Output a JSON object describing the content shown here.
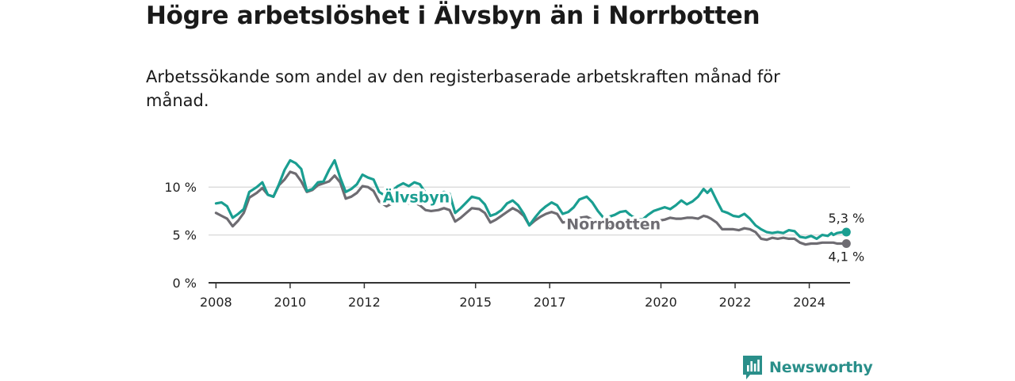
{
  "title": "Högre arbetslöshet i Älvsbyn än i Norrbotten",
  "subtitle": "Arbetssökande som andel av den registerbaserade arbetskraften månad för månad.",
  "brand": {
    "name": "Newsworthy"
  },
  "colors": {
    "alvsbyn": "#1a9e91",
    "norrbotten": "#6e6c72",
    "grid": "#dddddd",
    "axis": "#333333"
  },
  "chart_data": {
    "type": "line",
    "title": "Högre arbetslöshet i Älvsbyn än i Norrbotten",
    "xlabel": "",
    "ylabel": "",
    "xlim": [
      2007.8,
      2025.1
    ],
    "ylim": [
      0,
      13
    ],
    "x_ticks": [
      {
        "value": 2008,
        "label": "2008"
      },
      {
        "value": 2010,
        "label": "2010"
      },
      {
        "value": 2012,
        "label": "2012"
      },
      {
        "value": 2015,
        "label": "2015"
      },
      {
        "value": 2017,
        "label": "2017"
      },
      {
        "value": 2020,
        "label": "2020"
      },
      {
        "value": 2022,
        "label": "2022"
      },
      {
        "value": 2024,
        "label": "2024"
      }
    ],
    "y_ticks": [
      {
        "value": 0,
        "label": "0 %"
      },
      {
        "value": 5,
        "label": "5 %"
      },
      {
        "value": 10,
        "label": "10 %"
      }
    ],
    "grid": true,
    "series": [
      {
        "name": "Älvsbyn",
        "label": "Älvsbyn",
        "color": "#1a9e91",
        "end_label": "5,3 %",
        "points": [
          [
            2008.0,
            8.3
          ],
          [
            2008.15,
            8.4
          ],
          [
            2008.3,
            8.0
          ],
          [
            2008.45,
            6.8
          ],
          [
            2008.6,
            7.2
          ],
          [
            2008.75,
            7.7
          ],
          [
            2008.9,
            9.5
          ],
          [
            2009.1,
            10.0
          ],
          [
            2009.25,
            10.5
          ],
          [
            2009.4,
            9.2
          ],
          [
            2009.55,
            9.0
          ],
          [
            2009.7,
            10.3
          ],
          [
            2009.85,
            11.8
          ],
          [
            2010.0,
            12.8
          ],
          [
            2010.15,
            12.5
          ],
          [
            2010.3,
            11.9
          ],
          [
            2010.45,
            9.6
          ],
          [
            2010.6,
            9.8
          ],
          [
            2010.75,
            10.5
          ],
          [
            2010.9,
            10.6
          ],
          [
            2011.05,
            11.8
          ],
          [
            2011.2,
            12.8
          ],
          [
            2011.35,
            11.0
          ],
          [
            2011.5,
            9.5
          ],
          [
            2011.65,
            9.8
          ],
          [
            2011.8,
            10.3
          ],
          [
            2011.95,
            11.3
          ],
          [
            2012.1,
            11.0
          ],
          [
            2012.25,
            10.8
          ],
          [
            2012.4,
            9.5
          ],
          [
            2012.6,
            9.0
          ],
          [
            2012.75,
            9.6
          ],
          [
            2012.9,
            10.1
          ],
          [
            2013.05,
            10.4
          ],
          [
            2013.2,
            10.1
          ],
          [
            2013.35,
            10.5
          ],
          [
            2013.5,
            10.3
          ],
          [
            2013.65,
            9.4
          ],
          [
            2013.8,
            9.2
          ],
          [
            2014.0,
            9.3
          ],
          [
            2014.15,
            9.5
          ],
          [
            2014.3,
            9.3
          ],
          [
            2014.45,
            7.3
          ],
          [
            2014.6,
            7.8
          ],
          [
            2014.75,
            8.4
          ],
          [
            2014.9,
            9.0
          ],
          [
            2015.1,
            8.8
          ],
          [
            2015.25,
            8.2
          ],
          [
            2015.4,
            7.0
          ],
          [
            2015.55,
            7.2
          ],
          [
            2015.7,
            7.6
          ],
          [
            2015.85,
            8.3
          ],
          [
            2016.0,
            8.6
          ],
          [
            2016.15,
            8.1
          ],
          [
            2016.3,
            7.2
          ],
          [
            2016.45,
            6.0
          ],
          [
            2016.6,
            6.8
          ],
          [
            2016.75,
            7.5
          ],
          [
            2016.9,
            8.0
          ],
          [
            2017.05,
            8.4
          ],
          [
            2017.2,
            8.1
          ],
          [
            2017.35,
            7.2
          ],
          [
            2017.5,
            7.4
          ],
          [
            2017.65,
            7.9
          ],
          [
            2017.8,
            8.7
          ],
          [
            2018.0,
            9.0
          ],
          [
            2018.15,
            8.4
          ],
          [
            2018.3,
            7.5
          ],
          [
            2018.45,
            6.8
          ],
          [
            2018.6,
            6.9
          ],
          [
            2018.75,
            7.1
          ],
          [
            2018.9,
            7.4
          ],
          [
            2019.05,
            7.5
          ],
          [
            2019.2,
            7.0
          ],
          [
            2019.35,
            6.7
          ],
          [
            2019.5,
            6.6
          ],
          [
            2019.65,
            7.1
          ],
          [
            2019.8,
            7.5
          ],
          [
            2019.95,
            7.7
          ],
          [
            2020.1,
            7.9
          ],
          [
            2020.25,
            7.7
          ],
          [
            2020.4,
            8.1
          ],
          [
            2020.55,
            8.6
          ],
          [
            2020.7,
            8.2
          ],
          [
            2020.85,
            8.5
          ],
          [
            2021.0,
            9.0
          ],
          [
            2021.15,
            9.8
          ],
          [
            2021.25,
            9.4
          ],
          [
            2021.35,
            9.8
          ],
          [
            2021.5,
            8.6
          ],
          [
            2021.65,
            7.5
          ],
          [
            2021.8,
            7.3
          ],
          [
            2021.95,
            7.0
          ],
          [
            2022.1,
            6.9
          ],
          [
            2022.25,
            7.2
          ],
          [
            2022.4,
            6.7
          ],
          [
            2022.55,
            6.0
          ],
          [
            2022.7,
            5.6
          ],
          [
            2022.85,
            5.3
          ],
          [
            2023.0,
            5.2
          ],
          [
            2023.15,
            5.3
          ],
          [
            2023.3,
            5.2
          ],
          [
            2023.45,
            5.5
          ],
          [
            2023.6,
            5.4
          ],
          [
            2023.75,
            4.8
          ],
          [
            2023.9,
            4.7
          ],
          [
            2024.05,
            4.9
          ],
          [
            2024.2,
            4.6
          ],
          [
            2024.35,
            5.0
          ],
          [
            2024.5,
            4.9
          ],
          [
            2024.6,
            5.2
          ],
          [
            2024.65,
            5.0
          ],
          [
            2024.75,
            5.2
          ],
          [
            2024.9,
            5.3
          ],
          [
            2025.0,
            5.3
          ]
        ]
      },
      {
        "name": "Norrbotten",
        "label": "Norrbotten",
        "color": "#6e6c72",
        "end_label": "4,1 %",
        "points": [
          [
            2008.0,
            7.3
          ],
          [
            2008.15,
            7.0
          ],
          [
            2008.3,
            6.7
          ],
          [
            2008.45,
            5.9
          ],
          [
            2008.6,
            6.5
          ],
          [
            2008.75,
            7.3
          ],
          [
            2008.9,
            8.9
          ],
          [
            2009.1,
            9.4
          ],
          [
            2009.25,
            9.9
          ],
          [
            2009.4,
            9.2
          ],
          [
            2009.55,
            9.0
          ],
          [
            2009.7,
            10.2
          ],
          [
            2009.85,
            10.8
          ],
          [
            2010.0,
            11.6
          ],
          [
            2010.15,
            11.4
          ],
          [
            2010.3,
            10.6
          ],
          [
            2010.45,
            9.5
          ],
          [
            2010.6,
            9.7
          ],
          [
            2010.75,
            10.2
          ],
          [
            2010.9,
            10.4
          ],
          [
            2011.05,
            10.6
          ],
          [
            2011.2,
            11.2
          ],
          [
            2011.35,
            10.5
          ],
          [
            2011.5,
            8.8
          ],
          [
            2011.65,
            9.0
          ],
          [
            2011.8,
            9.4
          ],
          [
            2011.95,
            10.1
          ],
          [
            2012.1,
            10.0
          ],
          [
            2012.25,
            9.6
          ],
          [
            2012.4,
            8.5
          ],
          [
            2012.6,
            8.0
          ],
          [
            2012.75,
            8.3
          ],
          [
            2012.9,
            8.6
          ],
          [
            2013.05,
            8.6
          ],
          [
            2013.2,
            8.3
          ],
          [
            2013.35,
            8.4
          ],
          [
            2013.5,
            8.1
          ],
          [
            2013.65,
            7.6
          ],
          [
            2013.8,
            7.5
          ],
          [
            2014.0,
            7.6
          ],
          [
            2014.15,
            7.8
          ],
          [
            2014.3,
            7.6
          ],
          [
            2014.45,
            6.4
          ],
          [
            2014.6,
            6.8
          ],
          [
            2014.75,
            7.3
          ],
          [
            2014.9,
            7.8
          ],
          [
            2015.1,
            7.7
          ],
          [
            2015.25,
            7.3
          ],
          [
            2015.4,
            6.3
          ],
          [
            2015.55,
            6.6
          ],
          [
            2015.7,
            7.0
          ],
          [
            2015.85,
            7.4
          ],
          [
            2016.0,
            7.8
          ],
          [
            2016.15,
            7.5
          ],
          [
            2016.3,
            7.0
          ],
          [
            2016.45,
            6.0
          ],
          [
            2016.6,
            6.5
          ],
          [
            2016.75,
            6.9
          ],
          [
            2016.9,
            7.2
          ],
          [
            2017.05,
            7.4
          ],
          [
            2017.2,
            7.2
          ],
          [
            2017.35,
            6.3
          ],
          [
            2017.5,
            6.4
          ],
          [
            2017.65,
            6.6
          ],
          [
            2017.8,
            6.8
          ],
          [
            2018.0,
            6.9
          ],
          [
            2018.15,
            6.6
          ],
          [
            2018.3,
            6.1
          ],
          [
            2018.45,
            5.9
          ],
          [
            2018.6,
            6.0
          ],
          [
            2018.75,
            6.2
          ],
          [
            2018.9,
            6.4
          ],
          [
            2019.05,
            6.5
          ],
          [
            2019.2,
            6.1
          ],
          [
            2019.35,
            5.9
          ],
          [
            2019.5,
            5.9
          ],
          [
            2019.65,
            6.1
          ],
          [
            2019.8,
            6.3
          ],
          [
            2019.95,
            6.5
          ],
          [
            2020.1,
            6.6
          ],
          [
            2020.25,
            6.8
          ],
          [
            2020.4,
            6.7
          ],
          [
            2020.55,
            6.7
          ],
          [
            2020.7,
            6.8
          ],
          [
            2020.85,
            6.8
          ],
          [
            2021.0,
            6.7
          ],
          [
            2021.15,
            7.0
          ],
          [
            2021.25,
            6.9
          ],
          [
            2021.35,
            6.7
          ],
          [
            2021.5,
            6.3
          ],
          [
            2021.65,
            5.6
          ],
          [
            2021.8,
            5.6
          ],
          [
            2021.95,
            5.6
          ],
          [
            2022.1,
            5.5
          ],
          [
            2022.25,
            5.7
          ],
          [
            2022.4,
            5.6
          ],
          [
            2022.55,
            5.3
          ],
          [
            2022.7,
            4.6
          ],
          [
            2022.85,
            4.5
          ],
          [
            2023.0,
            4.7
          ],
          [
            2023.15,
            4.6
          ],
          [
            2023.3,
            4.7
          ],
          [
            2023.45,
            4.6
          ],
          [
            2023.6,
            4.6
          ],
          [
            2023.75,
            4.2
          ],
          [
            2023.9,
            4.0
          ],
          [
            2024.05,
            4.1
          ],
          [
            2024.2,
            4.1
          ],
          [
            2024.35,
            4.2
          ],
          [
            2024.5,
            4.2
          ],
          [
            2024.65,
            4.2
          ],
          [
            2024.75,
            4.1
          ],
          [
            2024.9,
            4.1
          ],
          [
            2025.0,
            4.1
          ]
        ]
      }
    ]
  }
}
